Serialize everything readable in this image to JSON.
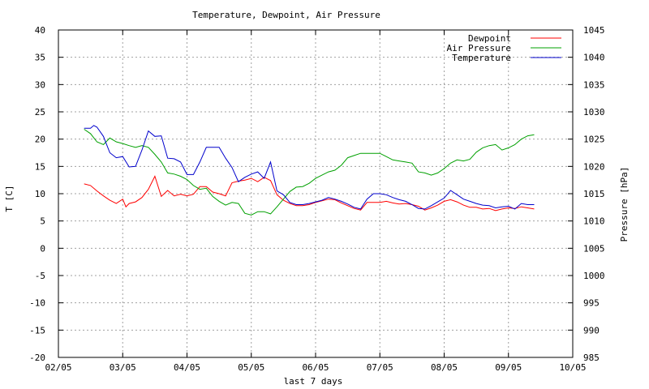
{
  "chart_data": {
    "type": "line",
    "title": "Temperature, Dewpoint, Air Pressure",
    "xlabel": "last 7 days",
    "ylabel": "T [C]",
    "y2label": "Pressure [hPa]",
    "x_ticks": [
      "02/05",
      "03/05",
      "04/05",
      "05/05",
      "06/05",
      "07/05",
      "08/05",
      "09/05",
      "10/05"
    ],
    "xlim": [
      0,
      8
    ],
    "ylim": [
      -20,
      40
    ],
    "y_ticks": [
      -20,
      -15,
      -10,
      -5,
      0,
      5,
      10,
      15,
      20,
      25,
      30,
      35,
      40
    ],
    "y2lim": [
      985,
      1045
    ],
    "y2_ticks": [
      985,
      990,
      995,
      1000,
      1005,
      1010,
      1015,
      1020,
      1025,
      1030,
      1035,
      1040,
      1045
    ],
    "grid": true,
    "legend_position": "top-right",
    "series": [
      {
        "name": "Dewpoint",
        "color": "#ff0000",
        "axis": "left",
        "x": [
          0.4,
          0.5,
          0.6,
          0.7,
          0.8,
          0.9,
          1.0,
          1.05,
          1.1,
          1.2,
          1.3,
          1.4,
          1.5,
          1.6,
          1.7,
          1.8,
          1.9,
          2.0,
          2.1,
          2.2,
          2.3,
          2.4,
          2.5,
          2.6,
          2.7,
          2.8,
          2.9,
          3.0,
          3.1,
          3.2,
          3.3,
          3.4,
          3.5,
          3.6,
          3.7,
          3.8,
          3.9,
          4.0,
          4.1,
          4.2,
          4.3,
          4.4,
          4.5,
          4.6,
          4.7,
          4.8,
          4.9,
          5.0,
          5.1,
          5.2,
          5.3,
          5.4,
          5.5,
          5.6,
          5.7,
          5.8,
          5.9,
          6.0,
          6.1,
          6.2,
          6.3,
          6.4,
          6.5,
          6.6,
          6.7,
          6.8,
          6.9,
          7.0,
          7.1,
          7.2,
          7.3,
          7.4
        ],
        "values": [
          11.8,
          11.5,
          10.5,
          9.6,
          8.8,
          8.2,
          9.0,
          7.6,
          8.2,
          8.5,
          9.3,
          10.8,
          13.2,
          9.5,
          10.6,
          9.6,
          9.9,
          9.6,
          9.9,
          11.3,
          11.3,
          10.3,
          10.0,
          9.6,
          12.0,
          12.3,
          12.5,
          12.8,
          12.2,
          13.0,
          12.4,
          9.8,
          8.8,
          8.2,
          7.8,
          7.8,
          8.0,
          8.4,
          8.7,
          9.0,
          8.9,
          8.3,
          7.8,
          7.3,
          7.0,
          8.4,
          8.4,
          8.4,
          8.6,
          8.3,
          8.1,
          8.2,
          8.0,
          7.7,
          7.0,
          7.4,
          7.9,
          8.6,
          8.9,
          8.5,
          7.9,
          7.5,
          7.5,
          7.2,
          7.3,
          6.9,
          7.2,
          7.4,
          7.3,
          7.6,
          7.4,
          7.2
        ]
      },
      {
        "name": "Air Pressure",
        "color": "#00a000",
        "axis": "right",
        "x": [
          0.4,
          0.5,
          0.6,
          0.7,
          0.8,
          0.9,
          1.0,
          1.1,
          1.2,
          1.3,
          1.4,
          1.5,
          1.6,
          1.7,
          1.8,
          1.9,
          2.0,
          2.1,
          2.2,
          2.3,
          2.4,
          2.5,
          2.6,
          2.7,
          2.8,
          2.9,
          3.0,
          3.1,
          3.2,
          3.3,
          3.4,
          3.5,
          3.6,
          3.7,
          3.8,
          3.9,
          4.0,
          4.1,
          4.2,
          4.3,
          4.4,
          4.5,
          4.6,
          4.7,
          4.8,
          4.9,
          5.0,
          5.1,
          5.2,
          5.3,
          5.4,
          5.5,
          5.6,
          5.7,
          5.8,
          5.9,
          6.0,
          6.1,
          6.2,
          6.3,
          6.4,
          6.5,
          6.6,
          6.7,
          6.8,
          6.9,
          7.0,
          7.1,
          7.2,
          7.3,
          7.4
        ],
        "values": [
          1026.8,
          1026.0,
          1024.5,
          1024.0,
          1025.2,
          1024.5,
          1024.2,
          1023.8,
          1023.5,
          1023.8,
          1023.5,
          1022.2,
          1020.8,
          1018.8,
          1018.6,
          1018.2,
          1017.6,
          1016.5,
          1015.8,
          1016.0,
          1014.5,
          1013.6,
          1012.9,
          1013.4,
          1013.2,
          1011.4,
          1011.1,
          1011.7,
          1011.7,
          1011.3,
          1012.6,
          1014.0,
          1015.4,
          1016.2,
          1016.3,
          1016.9,
          1017.8,
          1018.4,
          1019.0,
          1019.3,
          1020.2,
          1021.6,
          1022.0,
          1022.4,
          1022.4,
          1022.4,
          1022.4,
          1021.8,
          1021.2,
          1021.0,
          1020.8,
          1020.6,
          1019.0,
          1018.8,
          1018.4,
          1018.8,
          1019.6,
          1020.6,
          1021.2,
          1021.0,
          1021.3,
          1022.6,
          1023.4,
          1023.8,
          1024.0,
          1023.0,
          1023.4,
          1024.0,
          1025.0,
          1025.6,
          1025.8
        ]
      },
      {
        "name": "Temperature",
        "color": "#0000cc",
        "axis": "left",
        "x": [
          0.4,
          0.5,
          0.55,
          0.6,
          0.7,
          0.8,
          0.9,
          1.0,
          1.1,
          1.2,
          1.3,
          1.4,
          1.5,
          1.6,
          1.7,
          1.8,
          1.9,
          2.0,
          2.1,
          2.2,
          2.3,
          2.4,
          2.5,
          2.6,
          2.7,
          2.8,
          2.9,
          3.0,
          3.1,
          3.2,
          3.3,
          3.4,
          3.5,
          3.6,
          3.7,
          3.8,
          3.9,
          4.0,
          4.1,
          4.2,
          4.3,
          4.4,
          4.5,
          4.6,
          4.7,
          4.8,
          4.9,
          5.0,
          5.1,
          5.2,
          5.3,
          5.4,
          5.5,
          5.6,
          5.7,
          5.8,
          5.9,
          6.0,
          6.1,
          6.2,
          6.3,
          6.4,
          6.5,
          6.6,
          6.7,
          6.8,
          6.9,
          7.0,
          7.1,
          7.2,
          7.3,
          7.4
        ],
        "values": [
          22.0,
          22.0,
          22.5,
          22.2,
          20.5,
          17.5,
          16.6,
          16.8,
          14.9,
          15.0,
          18.0,
          21.5,
          20.5,
          20.6,
          16.5,
          16.4,
          15.8,
          13.5,
          13.5,
          15.8,
          18.5,
          18.5,
          18.5,
          16.5,
          14.8,
          12.2,
          13.0,
          13.6,
          14.0,
          12.8,
          15.8,
          10.5,
          9.8,
          8.4,
          8.0,
          8.0,
          8.2,
          8.5,
          8.8,
          9.3,
          9.0,
          8.6,
          8.1,
          7.5,
          7.2,
          9.0,
          10.0,
          10.0,
          9.8,
          9.3,
          8.9,
          8.6,
          8.0,
          7.3,
          7.2,
          7.8,
          8.5,
          9.2,
          10.6,
          9.8,
          9.0,
          8.6,
          8.2,
          7.9,
          7.8,
          7.4,
          7.6,
          7.7,
          7.2,
          8.2,
          8.0,
          8.0
        ]
      }
    ]
  }
}
